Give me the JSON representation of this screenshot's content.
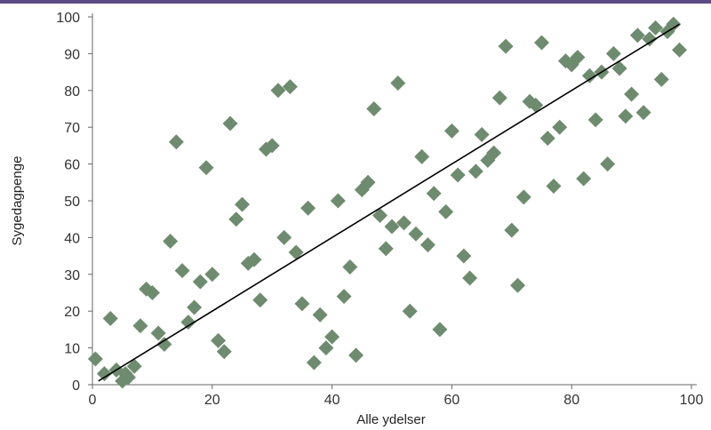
{
  "colors": {
    "top_bar": "#5b4a86",
    "marker": "#6f8b6f",
    "trendline": "#000000",
    "axis": "#666666"
  },
  "chart_data": {
    "type": "scatter",
    "xlabel": "Alle ydelser",
    "ylabel": "Sygedagpenge",
    "xlim": [
      0,
      100
    ],
    "ylim": [
      0,
      100
    ],
    "xticks": [
      "0",
      "20",
      "40",
      "60",
      "80",
      "100"
    ],
    "yticks": [
      "0",
      "10",
      "20",
      "30",
      "40",
      "50",
      "60",
      "70",
      "80",
      "90",
      "100"
    ],
    "grid": false,
    "legend": "none",
    "trendline": {
      "x": [
        1,
        98
      ],
      "y": [
        1,
        98
      ]
    },
    "points": [
      [
        0.5,
        7
      ],
      [
        2,
        3
      ],
      [
        3,
        18
      ],
      [
        4,
        4
      ],
      [
        5,
        1
      ],
      [
        5.5,
        3
      ],
      [
        6,
        2
      ],
      [
        7,
        5
      ],
      [
        8,
        16
      ],
      [
        9,
        26
      ],
      [
        10,
        25
      ],
      [
        11,
        14
      ],
      [
        12,
        11
      ],
      [
        13,
        39
      ],
      [
        14,
        66
      ],
      [
        15,
        31
      ],
      [
        16,
        17
      ],
      [
        17,
        21
      ],
      [
        18,
        28
      ],
      [
        19,
        59
      ],
      [
        20,
        30
      ],
      [
        21,
        12
      ],
      [
        22,
        9
      ],
      [
        23,
        71
      ],
      [
        24,
        45
      ],
      [
        25,
        49
      ],
      [
        26,
        33
      ],
      [
        27,
        34
      ],
      [
        28,
        23
      ],
      [
        29,
        64
      ],
      [
        30,
        65
      ],
      [
        31,
        80
      ],
      [
        32,
        40
      ],
      [
        33,
        81
      ],
      [
        34,
        36
      ],
      [
        35,
        22
      ],
      [
        36,
        48
      ],
      [
        37,
        6
      ],
      [
        38,
        19
      ],
      [
        39,
        10
      ],
      [
        40,
        13
      ],
      [
        41,
        50
      ],
      [
        42,
        24
      ],
      [
        43,
        32
      ],
      [
        44,
        8
      ],
      [
        45,
        53
      ],
      [
        46,
        55
      ],
      [
        47,
        75
      ],
      [
        48,
        46
      ],
      [
        49,
        37
      ],
      [
        50,
        43
      ],
      [
        51,
        82
      ],
      [
        52,
        44
      ],
      [
        53,
        20
      ],
      [
        54,
        41
      ],
      [
        55,
        62
      ],
      [
        56,
        38
      ],
      [
        57,
        52
      ],
      [
        58,
        15
      ],
      [
        59,
        47
      ],
      [
        60,
        69
      ],
      [
        61,
        57
      ],
      [
        62,
        35
      ],
      [
        63,
        29
      ],
      [
        64,
        58
      ],
      [
        65,
        68
      ],
      [
        66,
        61
      ],
      [
        67,
        63
      ],
      [
        68,
        78
      ],
      [
        69,
        92
      ],
      [
        70,
        42
      ],
      [
        71,
        27
      ],
      [
        72,
        51
      ],
      [
        73,
        77
      ],
      [
        74,
        76
      ],
      [
        75,
        93
      ],
      [
        76,
        67
      ],
      [
        77,
        54
      ],
      [
        78,
        70
      ],
      [
        79,
        88
      ],
      [
        80,
        87
      ],
      [
        81,
        89
      ],
      [
        82,
        56
      ],
      [
        83,
        84
      ],
      [
        84,
        72
      ],
      [
        85,
        85
      ],
      [
        86,
        60
      ],
      [
        87,
        90
      ],
      [
        88,
        86
      ],
      [
        89,
        73
      ],
      [
        90,
        79
      ],
      [
        91,
        95
      ],
      [
        92,
        74
      ],
      [
        93,
        94
      ],
      [
        94,
        97
      ],
      [
        95,
        83
      ],
      [
        96,
        96
      ],
      [
        97,
        98
      ],
      [
        98,
        91
      ]
    ]
  }
}
